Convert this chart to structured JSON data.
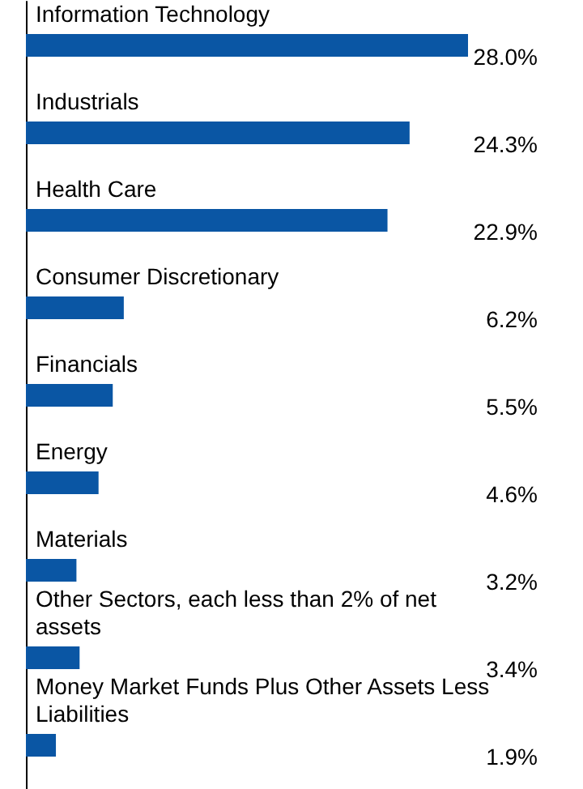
{
  "chart_data": {
    "type": "bar",
    "orientation": "horizontal",
    "categories": [
      "Information Technology",
      "Industrials",
      "Health Care",
      "Consumer Discretionary",
      "Financials",
      "Energy",
      "Materials",
      "Other Sectors, each less than 2% of net assets",
      "Money Market Funds Plus Other Assets Less Liabilities"
    ],
    "values": [
      28.0,
      24.3,
      22.9,
      6.2,
      5.5,
      4.6,
      3.2,
      3.4,
      1.9
    ],
    "value_labels": [
      "28.0%",
      "24.3%",
      "22.9%",
      "6.2%",
      "5.5%",
      "4.6%",
      "3.2%",
      "3.4%",
      "1.9%"
    ],
    "color": "#0a56a4"
  }
}
